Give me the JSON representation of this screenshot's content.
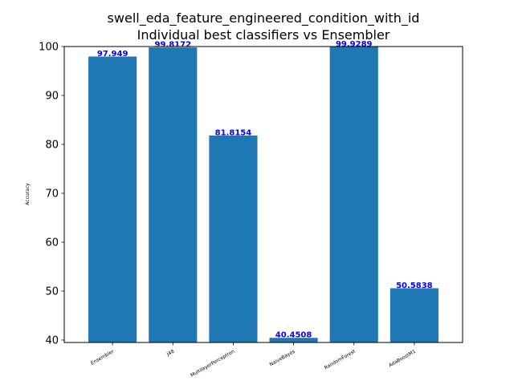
{
  "chart_data": {
    "type": "bar",
    "title": "swell_eda_feature_engineered_condition_with_id",
    "subtitle": "Individual best classifiers vs Ensembler",
    "xlabel": "",
    "ylabel": "Accuracy",
    "ylim": [
      39.5,
      100
    ],
    "yticks": [
      40,
      50,
      60,
      70,
      80,
      90,
      100
    ],
    "grid": false,
    "categories": [
      "Ensembler",
      "J48",
      "MultilayerPerceptron",
      "NaiveBayes",
      "RandomForest",
      "AdaBoostM1"
    ],
    "values": [
      97.949,
      99.8172,
      81.8154,
      40.4508,
      99.9289,
      50.5838
    ],
    "value_labels": [
      "97.949",
      "99.8172",
      "81.8154",
      "40.4508",
      "99.9289",
      "50.5838"
    ],
    "colors": {
      "bar": "#1f77b4",
      "value_label": "#0000ff",
      "axis": "#000000"
    }
  }
}
